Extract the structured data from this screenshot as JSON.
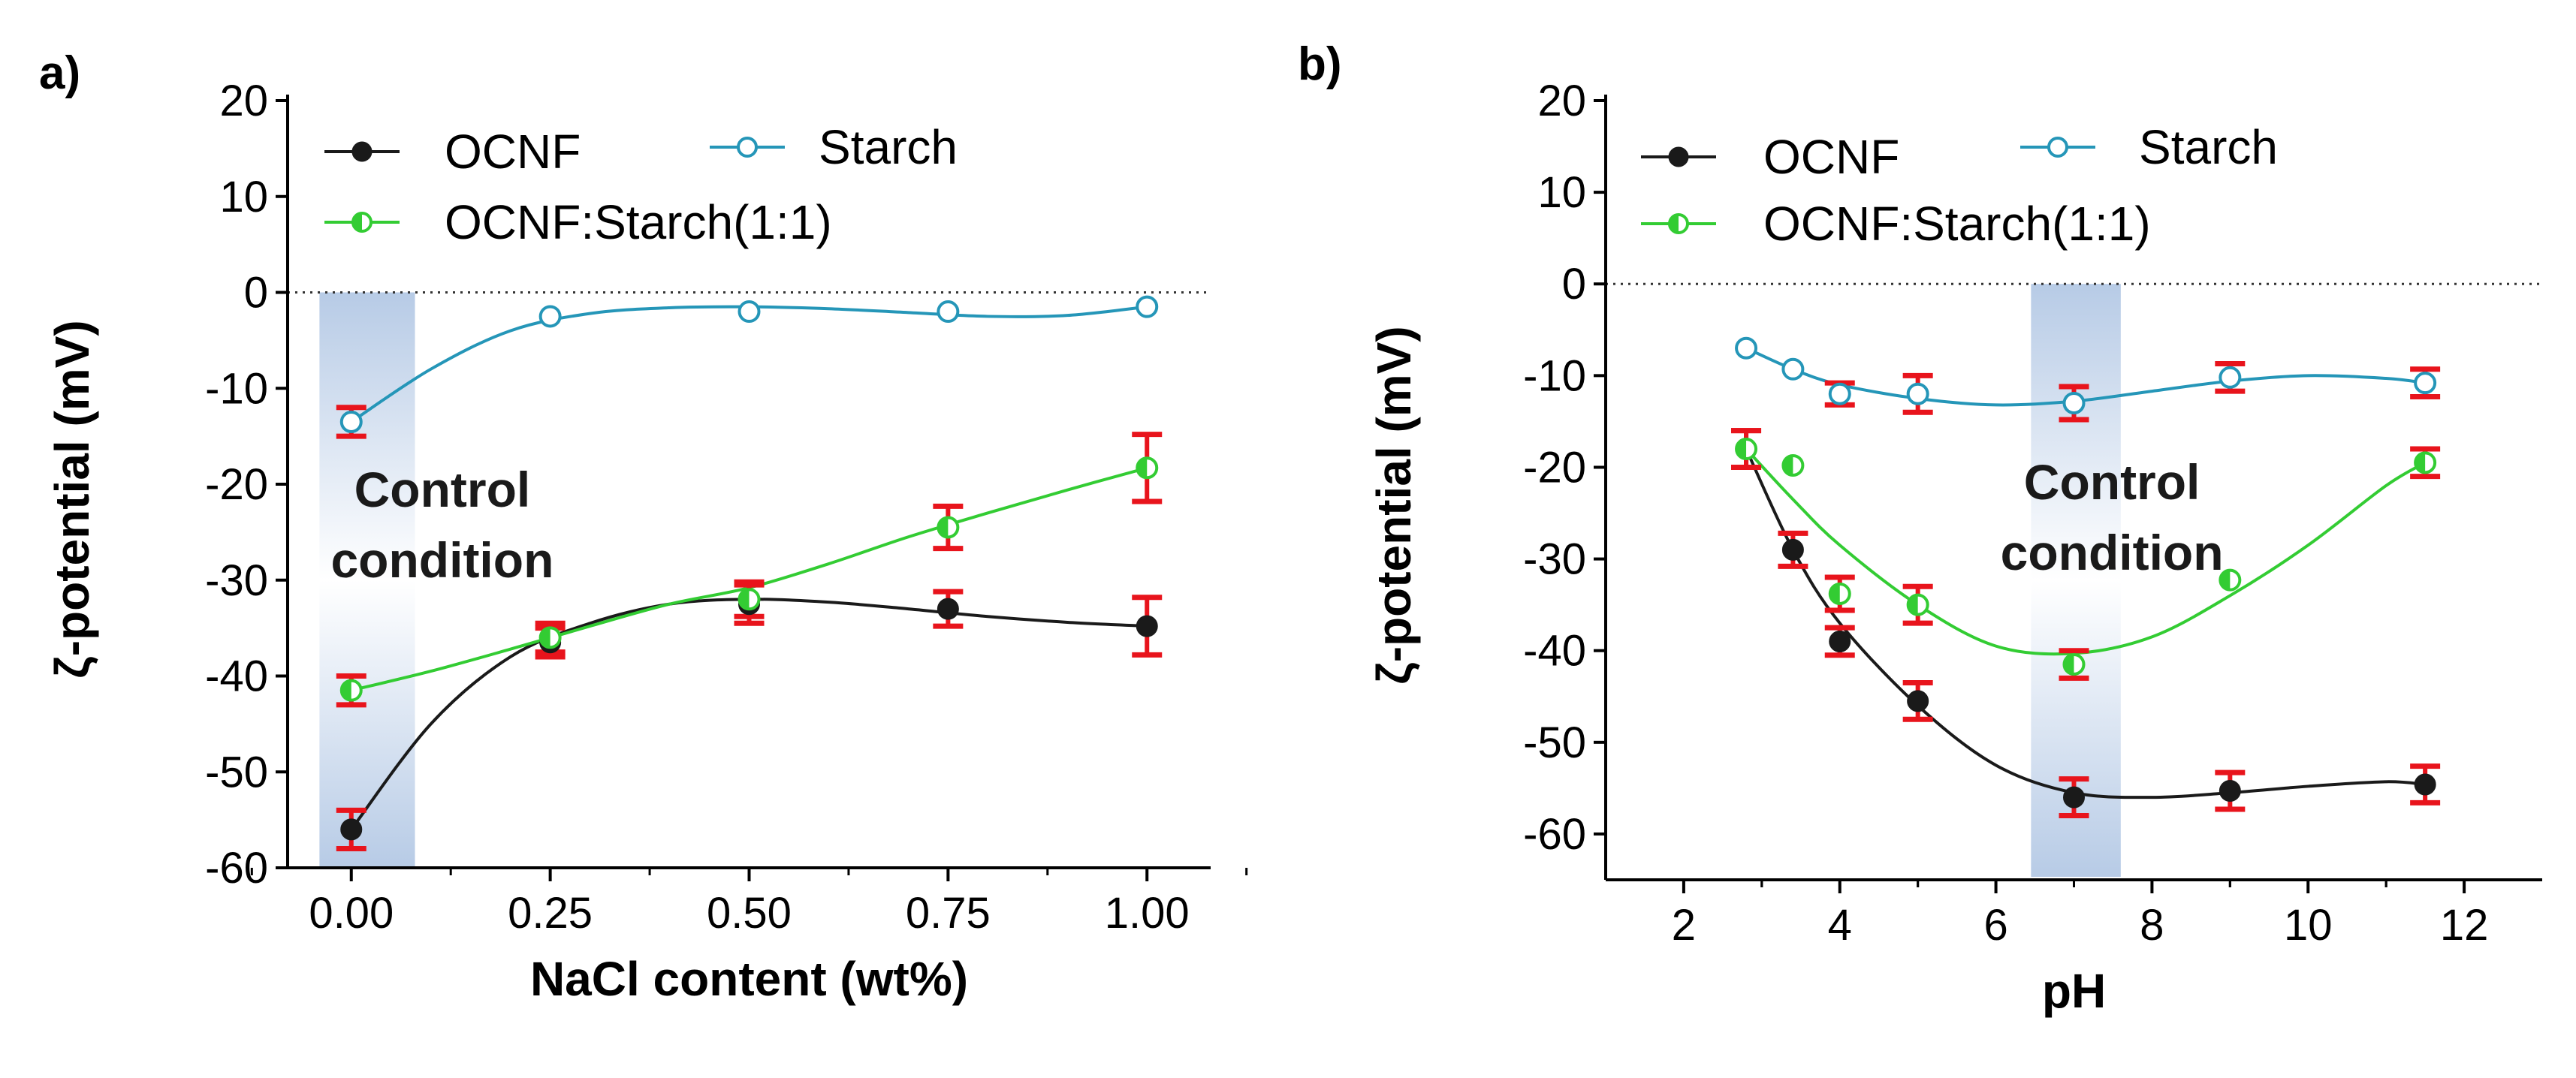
{
  "chart_data": [
    {
      "panel_label": "a)",
      "type": "line",
      "xlabel": "NaCl content (wt%)",
      "ylabel": "ζ-potential (mV)",
      "xlim": [
        -0.08,
        1.08
      ],
      "ylim": [
        -60,
        20
      ],
      "xticks": [
        0,
        0.25,
        0.5,
        0.75,
        1.0
      ],
      "xtick_labels": [
        "0.00",
        "0.25",
        "0.50",
        "0.75",
        "1.00"
      ],
      "yticks": [
        20,
        10,
        0,
        -10,
        -20,
        -30,
        -40,
        -50,
        -60
      ],
      "ytick_labels": [
        "20",
        "10",
        "0",
        "-10",
        "-20",
        "-30",
        "-40",
        "-50",
        "-60"
      ],
      "zero_line": true,
      "highlight": {
        "x0": -0.04,
        "x1": 0.08,
        "label_lines": [
          "Control",
          "condition"
        ]
      },
      "legend": {
        "position": "top-left",
        "entries": [
          "OCNF",
          "Starch",
          "OCNF:Starch(1:1)"
        ]
      },
      "series": [
        {
          "name": "OCNF",
          "color": "#1a1a1a",
          "marker": "filled",
          "x": [
            0,
            0.25,
            0.5,
            0.75,
            1.0
          ],
          "y": [
            -56,
            -36.5,
            -32.5,
            -33,
            -34.8
          ],
          "err": [
            2,
            1.5,
            2,
            1.8,
            3
          ],
          "curve": [
            [
              0,
              -56
            ],
            [
              0.1,
              -45
            ],
            [
              0.2,
              -38
            ],
            [
              0.3,
              -34.5
            ],
            [
              0.4,
              -32.5
            ],
            [
              0.5,
              -32
            ],
            [
              0.6,
              -32.3
            ],
            [
              0.7,
              -33
            ],
            [
              0.8,
              -33.8
            ],
            [
              0.9,
              -34.4
            ],
            [
              1.0,
              -34.8
            ]
          ]
        },
        {
          "name": "Starch",
          "color": "#2596b8",
          "marker": "open",
          "x": [
            0,
            0.25,
            0.5,
            0.75,
            1.0
          ],
          "y": [
            -13.5,
            -2.5,
            -2,
            -2,
            -1.5
          ],
          "err": [
            1.5,
            0,
            0,
            0,
            0
          ],
          "curve": [
            [
              0,
              -13.5
            ],
            [
              0.1,
              -8
            ],
            [
              0.2,
              -4
            ],
            [
              0.3,
              -2.2
            ],
            [
              0.4,
              -1.6
            ],
            [
              0.5,
              -1.5
            ],
            [
              0.6,
              -1.7
            ],
            [
              0.7,
              -2.1
            ],
            [
              0.8,
              -2.5
            ],
            [
              0.9,
              -2.4
            ],
            [
              1.0,
              -1.5
            ]
          ]
        },
        {
          "name": "OCNF:Starch(1:1)",
          "color": "#33cc33",
          "marker": "half",
          "x": [
            0,
            0.25,
            0.5,
            0.75,
            1.0
          ],
          "y": [
            -41.5,
            -36,
            -32,
            -24.5,
            -18.3
          ],
          "err": [
            1.5,
            1.5,
            1.8,
            2.2,
            3.5
          ],
          "curve": [
            [
              0,
              -41.5
            ],
            [
              0.1,
              -39.5
            ],
            [
              0.2,
              -37.2
            ],
            [
              0.3,
              -34.8
            ],
            [
              0.4,
              -32.5
            ],
            [
              0.5,
              -30.8
            ],
            [
              0.6,
              -28.3
            ],
            [
              0.7,
              -25.5
            ],
            [
              0.8,
              -23
            ],
            [
              0.9,
              -20.6
            ],
            [
              1.0,
              -18.3
            ]
          ]
        }
      ]
    },
    {
      "panel_label": "b)",
      "type": "line",
      "xlabel": "pH",
      "ylabel": "ζ-potential (mV)",
      "xlim": [
        1,
        13
      ],
      "ylim": [
        -65,
        20
      ],
      "xticks": [
        2,
        4,
        6,
        8,
        10,
        12
      ],
      "xtick_labels": [
        "2",
        "4",
        "6",
        "8",
        "10",
        "12"
      ],
      "yticks": [
        20,
        10,
        0,
        -10,
        -20,
        -30,
        -40,
        -50,
        -60
      ],
      "ytick_labels": [
        "20",
        "10",
        "0",
        "-10",
        "-20",
        "-30",
        "-40",
        "-50",
        "-60"
      ],
      "zero_line": true,
      "highlight": {
        "x0": 6.45,
        "x1": 7.6,
        "label_lines": [
          "Control",
          "condition"
        ]
      },
      "legend": {
        "position": "top-left",
        "entries": [
          "OCNF",
          "Starch",
          "OCNF:Starch(1:1)"
        ]
      },
      "series": [
        {
          "name": "OCNF",
          "color": "#1a1a1a",
          "marker": "filled",
          "x": [
            2.8,
            3.4,
            4,
            5,
            7,
            9,
            11.5
          ],
          "y": [
            -18,
            -29,
            -39,
            -45.5,
            -56,
            -55.3,
            -54.6
          ],
          "err": [
            2,
            1.8,
            1.5,
            2,
            2,
            2,
            2
          ],
          "curve": [
            [
              2.8,
              -18
            ],
            [
              3.4,
              -29
            ],
            [
              4,
              -37
            ],
            [
              5,
              -46
            ],
            [
              6,
              -52.5
            ],
            [
              7,
              -55.5
            ],
            [
              8,
              -56
            ],
            [
              9,
              -55.5
            ],
            [
              10,
              -54.8
            ],
            [
              11,
              -54.3
            ],
            [
              11.5,
              -54.6
            ]
          ]
        },
        {
          "name": "Starch",
          "color": "#2596b8",
          "marker": "open",
          "x": [
            2.8,
            3.4,
            4,
            5,
            7,
            9,
            11.5
          ],
          "y": [
            -7,
            -9.3,
            -12,
            -12,
            -13,
            -10.2,
            -10.8
          ],
          "err": [
            0,
            0,
            1.2,
            2,
            1.8,
            1.5,
            1.5
          ],
          "curve": [
            [
              2.8,
              -7
            ],
            [
              3.4,
              -9.3
            ],
            [
              4,
              -11
            ],
            [
              5,
              -12.5
            ],
            [
              6,
              -13.2
            ],
            [
              7,
              -12.8
            ],
            [
              8,
              -11.7
            ],
            [
              9,
              -10.6
            ],
            [
              10,
              -10
            ],
            [
              11,
              -10.3
            ],
            [
              11.5,
              -10.8
            ]
          ]
        },
        {
          "name": "OCNF:Starch(1:1)",
          "color": "#33cc33",
          "marker": "half",
          "x": [
            2.8,
            3.4,
            4,
            5,
            7,
            9,
            11.5
          ],
          "y": [
            -18,
            -19.8,
            -33.8,
            -35,
            -41.5,
            -32.3,
            -19.5
          ],
          "err": [
            2,
            0,
            1.8,
            2,
            1.5,
            0,
            1.5
          ],
          "curve": [
            [
              2.8,
              -18
            ],
            [
              3.4,
              -23.5
            ],
            [
              4,
              -28.5
            ],
            [
              5,
              -35
            ],
            [
              6,
              -39.5
            ],
            [
              7,
              -40.3
            ],
            [
              8,
              -38.5
            ],
            [
              9,
              -34
            ],
            [
              10,
              -28.5
            ],
            [
              11,
              -22
            ],
            [
              11.5,
              -19.5
            ]
          ]
        }
      ]
    }
  ]
}
